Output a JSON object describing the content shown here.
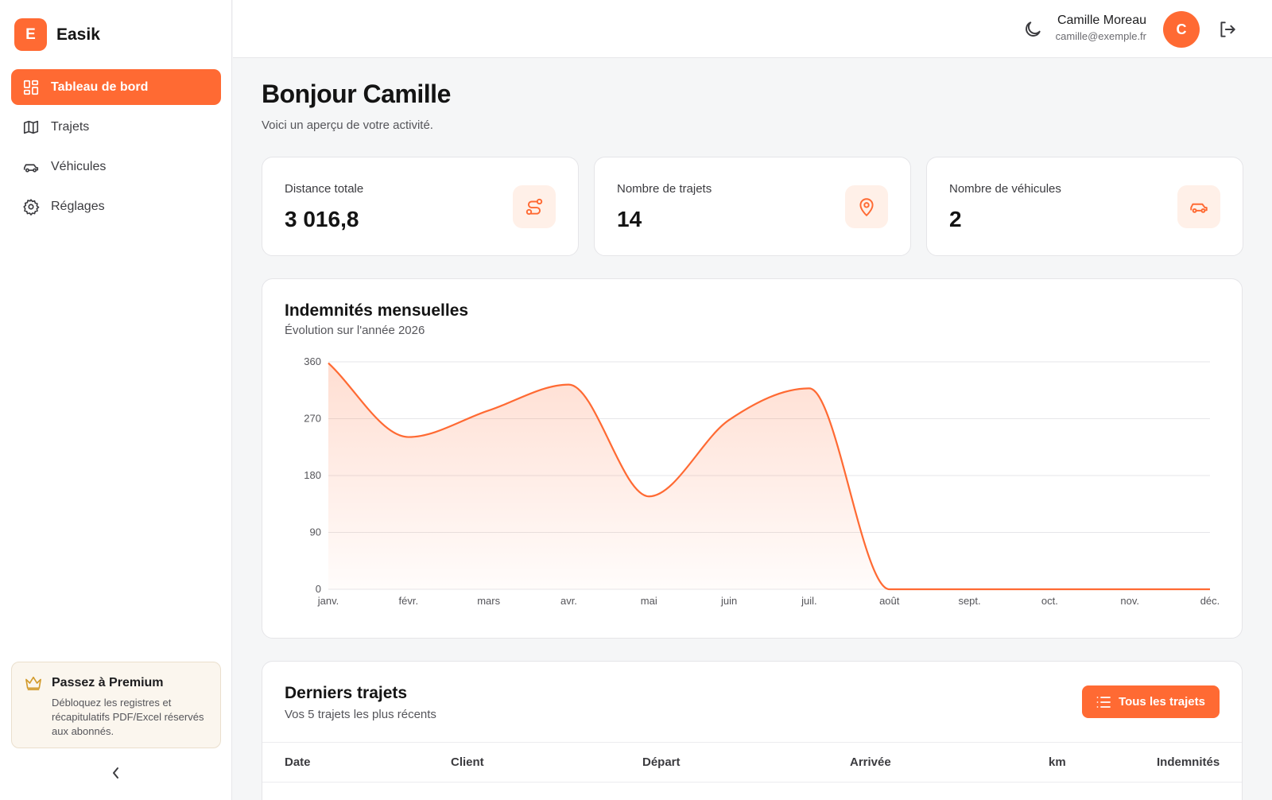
{
  "brand": {
    "logo_letter": "E",
    "name": "Easik",
    "accent": "#ff6a33"
  },
  "sidebar": {
    "items": [
      {
        "label": "Tableau de bord",
        "icon": "dashboard-icon",
        "active": true
      },
      {
        "label": "Trajets",
        "icon": "map-icon",
        "active": false
      },
      {
        "label": "Véhicules",
        "icon": "car-icon",
        "active": false
      },
      {
        "label": "Réglages",
        "icon": "gear-icon",
        "active": false
      }
    ],
    "premium": {
      "title": "Passez à Premium",
      "text": "Débloquez les registres et récapitulatifs PDF/Excel réservés aux abonnés."
    }
  },
  "header": {
    "user_name": "Camille Moreau",
    "user_email": "camille@exemple.fr",
    "avatar_letter": "C"
  },
  "main": {
    "greeting": "Bonjour Camille",
    "subtitle": "Voici un aperçu de votre activité.",
    "stats": [
      {
        "label": "Distance totale",
        "value": "3 016,8",
        "icon": "route-icon"
      },
      {
        "label": "Nombre de trajets",
        "value": "14",
        "icon": "map-pin-icon"
      },
      {
        "label": "Nombre de véhicules",
        "value": "2",
        "icon": "car-icon"
      }
    ],
    "chart_card": {
      "title": "Indemnités mensuelles",
      "subtitle": "Évolution sur l'année 2026"
    },
    "trips": {
      "title": "Derniers trajets",
      "subtitle": "Vos 5 trajets les plus récents",
      "button_label": "Tous les trajets",
      "columns": [
        "Date",
        "Client",
        "Départ",
        "Arrivée",
        "km",
        "Indemnités"
      ]
    }
  },
  "chart_data": {
    "type": "area",
    "title": "Indemnités mensuelles",
    "subtitle": "Évolution sur l'année 2026",
    "categories": [
      "janv.",
      "févr.",
      "mars",
      "avr.",
      "mai",
      "juin",
      "juil.",
      "août",
      "sept.",
      "oct.",
      "nov.",
      "déc."
    ],
    "series": [
      {
        "values": [
          358,
          241,
          283,
          324,
          147,
          268,
          318,
          0,
          0,
          0,
          0,
          0
        ],
        "color": "#ff6a33"
      }
    ],
    "ylim": [
      0,
      360
    ],
    "yticks": [
      0,
      90,
      180,
      270,
      360
    ],
    "grid": true
  }
}
